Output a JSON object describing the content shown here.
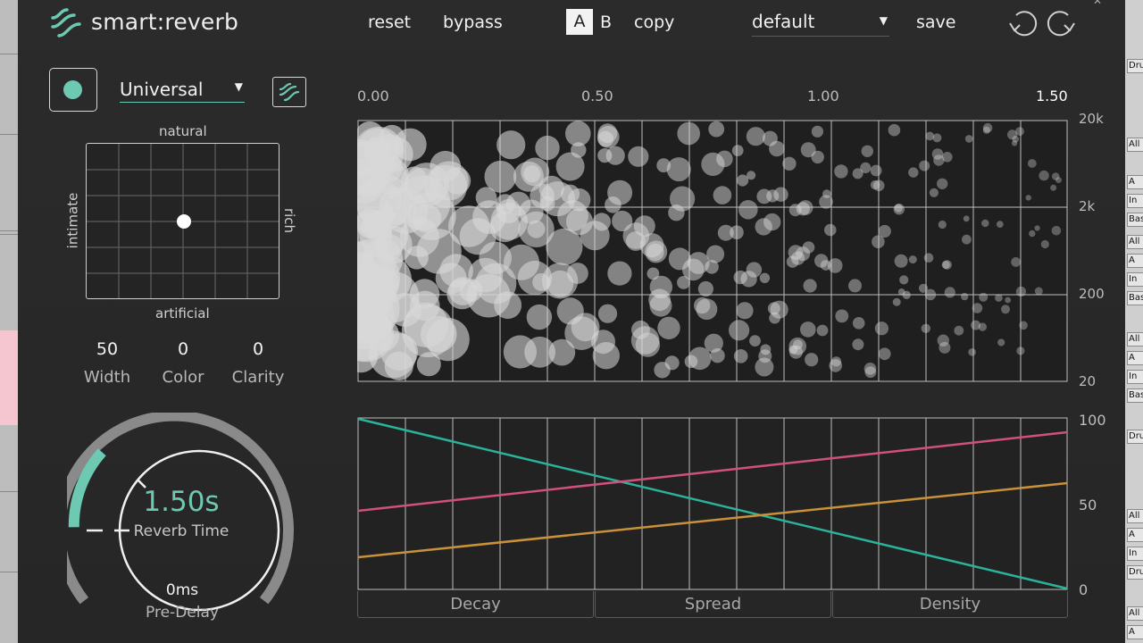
{
  "app": {
    "title": "smart:reverb"
  },
  "header": {
    "reset_label": "reset",
    "bypass_label": "bypass",
    "ab_a_label": "A",
    "ab_b_label": "B",
    "copy_label": "copy",
    "preset_value": "default",
    "save_label": "save",
    "undo_icon": "undo-icon",
    "redo_icon": "redo-icon"
  },
  "left_panel": {
    "profile_value": "Universal",
    "xy_pad": {
      "top_label": "natural",
      "bottom_label": "artificial",
      "left_label": "intimate",
      "right_label": "rich"
    },
    "params": [
      {
        "name": "Width",
        "value": "50"
      },
      {
        "name": "Color",
        "value": "0"
      },
      {
        "name": "Clarity",
        "value": "0"
      }
    ],
    "reverb_time": {
      "value": "1.50s",
      "label": "Reverb Time"
    },
    "pre_delay": {
      "value": "0ms",
      "label": "Pre-Delay"
    }
  },
  "graphs": {
    "time_ticks": [
      "0.00",
      "0.50",
      "1.00",
      "1.50"
    ],
    "freq_ticks": [
      "20k",
      "2k",
      "200",
      "20"
    ],
    "pct_ticks": [
      "100",
      "50",
      "0"
    ],
    "tabs": [
      "Decay",
      "Spread",
      "Density"
    ]
  },
  "colors": {
    "accent": "#6ec9b3",
    "decay_line": "#2bb39a",
    "spread_line": "#d0507f",
    "density_line": "#c9923a"
  },
  "daw_right_cells": [
    "Dru",
    "All",
    "A",
    "In",
    "Bas",
    "All",
    "A",
    "In",
    "Bas",
    "All",
    "A",
    "In",
    "Bas",
    "Dru",
    "All",
    "A",
    "In",
    "Dru",
    "All",
    "A"
  ]
}
